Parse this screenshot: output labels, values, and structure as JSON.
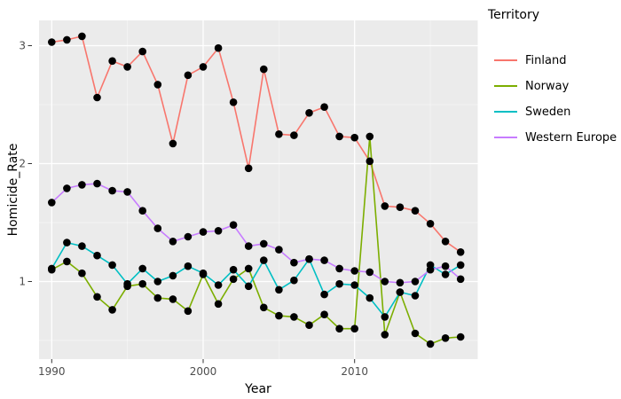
{
  "figure": {
    "background": "#ffffff",
    "panel_background": "#EBEBEB",
    "gridline_color": "#FFFFFF",
    "tick_color": "#333333",
    "tick_label_color": "#4D4D4D",
    "axis_title_color": "#000000",
    "point_color": "#000000"
  },
  "chart_data": {
    "type": "line",
    "title": "",
    "xlabel": "Year",
    "ylabel": "Homicide_Rate",
    "legend_title": "Territory",
    "legend_position": "right",
    "grid": "on",
    "xlim": [
      1989.2,
      2018.2
    ],
    "ylim": [
      0.34,
      3.21
    ],
    "x_ticks": [
      1990,
      2000,
      2010
    ],
    "y_ticks": [
      1,
      2,
      3
    ],
    "x_minor_ticks": [
      1995,
      2005,
      2015
    ],
    "y_minor_ticks": [
      0.5,
      1.5,
      2.5
    ],
    "x": [
      1990,
      1991,
      1992,
      1993,
      1994,
      1995,
      1996,
      1997,
      1998,
      1999,
      2000,
      2001,
      2002,
      2003,
      2004,
      2005,
      2006,
      2007,
      2008,
      2009,
      2010,
      2011,
      2012,
      2013,
      2014,
      2015,
      2016,
      2017
    ],
    "series": [
      {
        "name": "Finland",
        "color": "#F8766D",
        "values": [
          3.03,
          3.05,
          3.08,
          2.56,
          2.87,
          2.82,
          2.95,
          2.67,
          2.17,
          2.75,
          2.82,
          2.98,
          2.52,
          1.96,
          2.8,
          2.25,
          2.24,
          2.43,
          2.48,
          2.23,
          2.22,
          2.02,
          1.64,
          1.63,
          1.6,
          1.49,
          1.34,
          1.25
        ]
      },
      {
        "name": "Norway",
        "color": "#7CAE00",
        "values": [
          1.1,
          1.17,
          1.07,
          0.87,
          0.76,
          0.96,
          0.98,
          0.86,
          0.85,
          0.75,
          1.06,
          0.81,
          1.02,
          1.11,
          0.78,
          0.71,
          0.7,
          0.63,
          0.72,
          0.6,
          0.6,
          2.23,
          0.55,
          0.91,
          0.56,
          0.47,
          0.52,
          0.53
        ]
      },
      {
        "name": "Sweden",
        "color": "#00BFC4",
        "values": [
          1.11,
          1.33,
          1.3,
          1.22,
          1.14,
          0.98,
          1.11,
          1.0,
          1.05,
          1.13,
          1.07,
          0.97,
          1.1,
          0.96,
          1.18,
          0.93,
          1.01,
          1.19,
          0.89,
          0.98,
          0.97,
          0.86,
          0.7,
          0.91,
          0.88,
          1.14,
          1.06,
          1.14
        ]
      },
      {
        "name": "Western Europe",
        "color": "#C77CFF",
        "values": [
          1.67,
          1.79,
          1.82,
          1.83,
          1.77,
          1.76,
          1.6,
          1.45,
          1.34,
          1.38,
          1.42,
          1.43,
          1.48,
          1.3,
          1.32,
          1.27,
          1.16,
          1.19,
          1.18,
          1.11,
          1.09,
          1.08,
          1.0,
          0.99,
          1.0,
          1.1,
          1.13,
          1.02
        ]
      }
    ]
  }
}
